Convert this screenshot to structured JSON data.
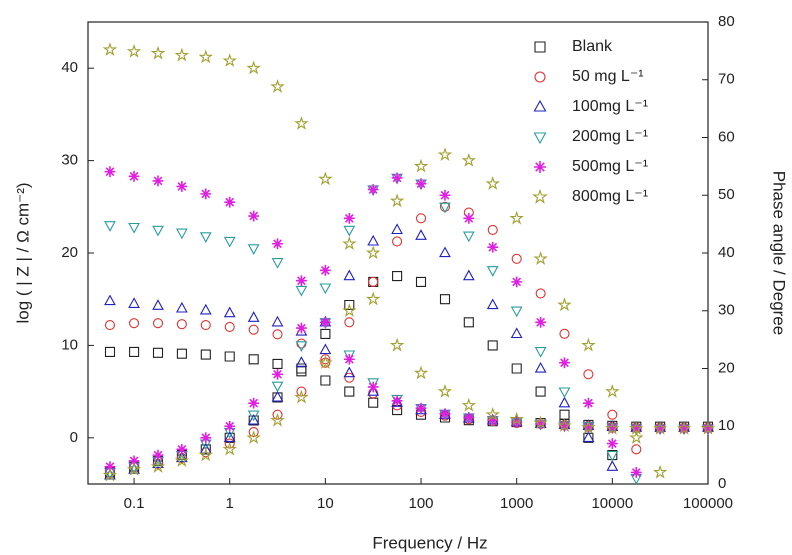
{
  "chart_data": {
    "type": "scatter",
    "x_label": "Frequency / Hz",
    "y_label": "log ( | Z | / Ω cm⁻²)",
    "y2_label": "Phase angle / Degree",
    "x_log": true,
    "xlim": [
      0.033,
      100000
    ],
    "xticks": [
      0.1,
      1,
      10,
      100,
      1000,
      10000,
      100000
    ],
    "ylim": [
      -5,
      45
    ],
    "yticks": [
      0,
      10,
      20,
      30,
      40
    ],
    "y2lim": [
      0,
      80
    ],
    "y2ticks": [
      0,
      10,
      20,
      30,
      40,
      50,
      60,
      70,
      80
    ],
    "legend": "upper right",
    "x": [
      0.056,
      0.1,
      0.178,
      0.316,
      0.562,
      1,
      1.78,
      3.16,
      5.62,
      10,
      17.8,
      31.6,
      56.2,
      100,
      178,
      316,
      562,
      1000,
      1780,
      3160,
      5620,
      10000,
      17800,
      31600,
      56200,
      100000
    ],
    "series": [
      {
        "name": "Blank",
        "color": "#222222",
        "marker": "square",
        "values": [
          9.3,
          9.3,
          9.2,
          9.1,
          9.0,
          8.8,
          8.5,
          8.0,
          7.2,
          6.2,
          5.0,
          3.8,
          3.0,
          2.5,
          2.2,
          1.9,
          1.8,
          1.7,
          1.6,
          1.5,
          1.4,
          1.3,
          1.2,
          1.2,
          1.2,
          1.2
        ],
        "y2_values": [
          2,
          3,
          4,
          5,
          6,
          8,
          11,
          15,
          20,
          26,
          31,
          35,
          36,
          35,
          32,
          28,
          24,
          20,
          16,
          12,
          8,
          5,
          null,
          null,
          null,
          null
        ],
        "axis": "y2"
      },
      {
        "name": "50 mg L⁻¹",
        "color": "#e03030",
        "marker": "circle",
        "values": [
          12.2,
          12.4,
          12.4,
          12.3,
          12.2,
          12.0,
          11.7,
          11.2,
          10.2,
          8.5,
          6.5,
          4.8,
          3.5,
          2.8,
          2.4,
          2.0,
          1.8,
          1.6,
          1.5,
          1.4,
          1.3,
          1.2,
          1.1,
          1.1,
          1.1,
          1.1
        ],
        "y2_values": [
          2,
          3,
          3.5,
          4.5,
          5.5,
          7,
          9,
          12,
          16,
          21,
          28,
          35,
          42,
          46,
          48,
          47,
          44,
          39,
          33,
          26,
          19,
          12,
          6,
          null,
          null,
          null
        ],
        "axis": "y2"
      },
      {
        "name": "100mg L⁻¹",
        "color": "#2020c0",
        "marker": "triangle-up",
        "values": [
          14.8,
          14.5,
          14.3,
          14.0,
          13.8,
          13.5,
          13.0,
          12.5,
          11.5,
          9.5,
          7,
          5,
          3.8,
          3,
          2.5,
          2.1,
          1.9,
          1.7,
          1.5,
          1.4,
          1.3,
          1.2,
          1.1,
          1.1,
          1.1,
          1.1
        ],
        "y2_values": [
          1.5,
          2.5,
          3.5,
          4.5,
          6,
          8,
          11,
          15,
          21,
          28,
          36,
          42,
          44,
          43,
          40,
          36,
          31,
          26,
          20,
          14,
          8,
          3,
          null,
          null,
          null,
          null
        ],
        "axis": "y2"
      },
      {
        "name": "200mg L⁻¹",
        "color": "#2a9c9c",
        "marker": "triangle-down",
        "values": [
          23,
          22.8,
          22.5,
          22.2,
          21.8,
          21.3,
          20.5,
          19,
          16,
          12.5,
          9,
          6,
          4.2,
          3.2,
          2.6,
          2.2,
          1.9,
          1.7,
          1.5,
          1.3,
          1.2,
          1.1,
          1.0,
          1.0,
          1.0,
          1.0
        ],
        "y2_values": [
          2,
          3,
          4,
          5,
          7,
          9,
          12,
          17,
          24,
          34,
          44,
          51,
          53,
          52,
          48,
          43,
          37,
          30,
          23,
          16,
          10,
          5,
          1,
          null,
          null,
          null
        ],
        "axis": "y2"
      },
      {
        "name": "500mg L⁻¹",
        "color": "#e020e0",
        "marker": "asterisk",
        "values": [
          28.8,
          28.3,
          27.8,
          27.2,
          26.4,
          25.5,
          24,
          21,
          17,
          12.5,
          8.5,
          5.5,
          4,
          3.2,
          2.6,
          2.2,
          1.9,
          1.7,
          1.5,
          1.3,
          1.2,
          1.1,
          1.0,
          1.0,
          1.0,
          1.0
        ],
        "y2_values": [
          3,
          4,
          5,
          6,
          8,
          10,
          14,
          19,
          27,
          37,
          46,
          51,
          53,
          52,
          50,
          46,
          41,
          35,
          28,
          21,
          14,
          7,
          2,
          null,
          null,
          null
        ],
        "axis": "y2"
      },
      {
        "name": "800mg L⁻¹",
        "color": "#a0a030",
        "marker": "star",
        "values": [
          42,
          41.8,
          41.6,
          41.4,
          41.2,
          40.8,
          40,
          38,
          34,
          28,
          21,
          15,
          10,
          7,
          5,
          3.5,
          2.5,
          2,
          1.6,
          1.3,
          1.1,
          1.0,
          1.0,
          1.0,
          1.0,
          1.0
        ],
        "y2_values": [
          1.5,
          2.5,
          3,
          4,
          5,
          6,
          8,
          11,
          15,
          21,
          30,
          40,
          49,
          55,
          57,
          56,
          52,
          46,
          39,
          31,
          24,
          16,
          8,
          2,
          null,
          null
        ],
        "axis": "y2"
      }
    ]
  }
}
